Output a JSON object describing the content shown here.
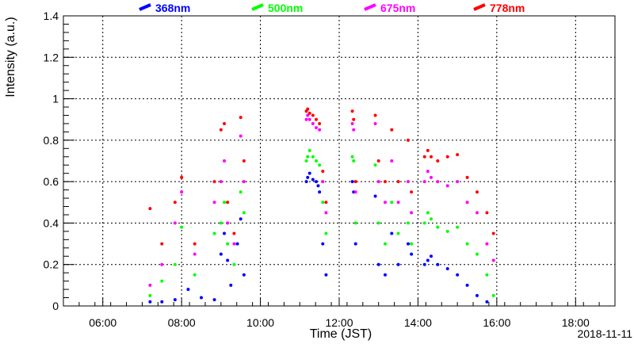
{
  "chart_data": {
    "type": "scatter",
    "xlabel": "Time (JST)",
    "ylabel": "Intensity (a.u.)",
    "date_label": "2018-11-11",
    "xlim": [
      "05:00",
      "19:00"
    ],
    "ylim": [
      0,
      1.4
    ],
    "x_ticks": [
      "06:00",
      "08:00",
      "10:00",
      "12:00",
      "14:00",
      "16:00",
      "18:00"
    ],
    "y_ticks": [
      "0",
      "0.2",
      "0.4",
      "0.6",
      "0.8",
      "1",
      "1.2",
      "1.4"
    ],
    "grid": true,
    "legend_position": "top",
    "series": [
      {
        "name": "368nm",
        "color": "#0000ff",
        "points": [
          [
            "07:12",
            0.02
          ],
          [
            "07:30",
            0.02
          ],
          [
            "07:50",
            0.03
          ],
          [
            "08:10",
            0.08
          ],
          [
            "08:30",
            0.04
          ],
          [
            "08:50",
            0.03
          ],
          [
            "09:00",
            0.25
          ],
          [
            "09:05",
            0.35
          ],
          [
            "09:10",
            0.22
          ],
          [
            "09:15",
            0.1
          ],
          [
            "09:25",
            0.3
          ],
          [
            "09:30",
            0.42
          ],
          [
            "09:35",
            0.15
          ],
          [
            "11:10",
            0.6
          ],
          [
            "11:12",
            0.62
          ],
          [
            "11:15",
            0.64
          ],
          [
            "11:20",
            0.61
          ],
          [
            "11:25",
            0.6
          ],
          [
            "11:28",
            0.58
          ],
          [
            "11:30",
            0.55
          ],
          [
            "11:35",
            0.3
          ],
          [
            "11:40",
            0.15
          ],
          [
            "12:20",
            0.6
          ],
          [
            "12:22",
            0.55
          ],
          [
            "12:25",
            0.3
          ],
          [
            "12:55",
            0.53
          ],
          [
            "13:00",
            0.2
          ],
          [
            "13:10",
            0.15
          ],
          [
            "13:20",
            0.35
          ],
          [
            "13:30",
            0.2
          ],
          [
            "13:45",
            0.3
          ],
          [
            "13:50",
            0.25
          ],
          [
            "14:10",
            0.2
          ],
          [
            "14:15",
            0.22
          ],
          [
            "14:20",
            0.24
          ],
          [
            "14:30",
            0.2
          ],
          [
            "14:45",
            0.18
          ],
          [
            "15:00",
            0.15
          ],
          [
            "15:15",
            0.1
          ],
          [
            "15:30",
            0.05
          ],
          [
            "15:45",
            0.02
          ]
        ]
      },
      {
        "name": "500nm",
        "color": "#00ff00",
        "points": [
          [
            "07:12",
            0.05
          ],
          [
            "07:30",
            0.12
          ],
          [
            "07:50",
            0.2
          ],
          [
            "08:00",
            0.38
          ],
          [
            "08:20",
            0.15
          ],
          [
            "08:50",
            0.35
          ],
          [
            "09:00",
            0.4
          ],
          [
            "09:05",
            0.5
          ],
          [
            "09:10",
            0.3
          ],
          [
            "09:20",
            0.2
          ],
          [
            "09:30",
            0.55
          ],
          [
            "09:35",
            0.45
          ],
          [
            "11:10",
            0.7
          ],
          [
            "11:12",
            0.72
          ],
          [
            "11:15",
            0.75
          ],
          [
            "11:20",
            0.72
          ],
          [
            "11:25",
            0.7
          ],
          [
            "11:30",
            0.68
          ],
          [
            "11:35",
            0.5
          ],
          [
            "11:40",
            0.35
          ],
          [
            "12:20",
            0.72
          ],
          [
            "12:22",
            0.7
          ],
          [
            "12:25",
            0.4
          ],
          [
            "12:55",
            0.68
          ],
          [
            "13:00",
            0.4
          ],
          [
            "13:10",
            0.3
          ],
          [
            "13:20",
            0.5
          ],
          [
            "13:30",
            0.35
          ],
          [
            "13:45",
            0.4
          ],
          [
            "13:50",
            0.3
          ],
          [
            "14:10",
            0.4
          ],
          [
            "14:15",
            0.45
          ],
          [
            "14:20",
            0.42
          ],
          [
            "14:30",
            0.38
          ],
          [
            "14:45",
            0.36
          ],
          [
            "15:00",
            0.38
          ],
          [
            "15:15",
            0.3
          ],
          [
            "15:30",
            0.25
          ],
          [
            "15:45",
            0.15
          ],
          [
            "15:55",
            0.05
          ]
        ]
      },
      {
        "name": "675nm",
        "color": "#ff00ff",
        "points": [
          [
            "07:12",
            0.1
          ],
          [
            "07:30",
            0.2
          ],
          [
            "07:50",
            0.4
          ],
          [
            "08:00",
            0.55
          ],
          [
            "08:20",
            0.25
          ],
          [
            "08:50",
            0.5
          ],
          [
            "09:00",
            0.6
          ],
          [
            "09:05",
            0.7
          ],
          [
            "09:10",
            0.4
          ],
          [
            "09:20",
            0.3
          ],
          [
            "09:30",
            0.82
          ],
          [
            "09:35",
            0.6
          ],
          [
            "11:10",
            0.9
          ],
          [
            "11:12",
            0.92
          ],
          [
            "11:15",
            0.9
          ],
          [
            "11:20",
            0.88
          ],
          [
            "11:25",
            0.86
          ],
          [
            "11:30",
            0.85
          ],
          [
            "11:35",
            0.6
          ],
          [
            "11:40",
            0.45
          ],
          [
            "12:20",
            0.88
          ],
          [
            "12:22",
            0.85
          ],
          [
            "12:25",
            0.55
          ],
          [
            "12:55",
            0.88
          ],
          [
            "13:00",
            0.6
          ],
          [
            "13:10",
            0.5
          ],
          [
            "13:20",
            0.7
          ],
          [
            "13:30",
            0.5
          ],
          [
            "13:45",
            0.6
          ],
          [
            "13:50",
            0.45
          ],
          [
            "14:10",
            0.6
          ],
          [
            "14:15",
            0.65
          ],
          [
            "14:20",
            0.62
          ],
          [
            "14:30",
            0.6
          ],
          [
            "14:45",
            0.58
          ],
          [
            "15:00",
            0.6
          ],
          [
            "15:15",
            0.5
          ],
          [
            "15:30",
            0.45
          ],
          [
            "15:45",
            0.3
          ],
          [
            "15:55",
            0.22
          ]
        ]
      },
      {
        "name": "778nm",
        "color": "#ff0000",
        "points": [
          [
            "07:12",
            0.47
          ],
          [
            "07:30",
            0.3
          ],
          [
            "07:50",
            0.5
          ],
          [
            "08:00",
            0.62
          ],
          [
            "08:20",
            0.3
          ],
          [
            "08:50",
            0.6
          ],
          [
            "09:00",
            0.85
          ],
          [
            "09:05",
            0.88
          ],
          [
            "09:10",
            0.5
          ],
          [
            "09:20",
            0.35
          ],
          [
            "09:30",
            0.91
          ],
          [
            "09:35",
            0.7
          ],
          [
            "11:10",
            0.94
          ],
          [
            "11:12",
            0.95
          ],
          [
            "11:15",
            0.93
          ],
          [
            "11:20",
            0.92
          ],
          [
            "11:25",
            0.9
          ],
          [
            "11:30",
            0.88
          ],
          [
            "11:35",
            0.65
          ],
          [
            "11:40",
            0.5
          ],
          [
            "12:20",
            0.94
          ],
          [
            "12:22",
            0.9
          ],
          [
            "12:25",
            0.6
          ],
          [
            "12:55",
            0.92
          ],
          [
            "13:00",
            0.7
          ],
          [
            "13:10",
            0.6
          ],
          [
            "13:20",
            0.85
          ],
          [
            "13:30",
            0.6
          ],
          [
            "13:45",
            0.8
          ],
          [
            "13:50",
            0.55
          ],
          [
            "14:10",
            0.72
          ],
          [
            "14:15",
            0.75
          ],
          [
            "14:20",
            0.72
          ],
          [
            "14:30",
            0.7
          ],
          [
            "14:45",
            0.72
          ],
          [
            "15:00",
            0.73
          ],
          [
            "15:15",
            0.62
          ],
          [
            "15:30",
            0.55
          ],
          [
            "15:45",
            0.45
          ],
          [
            "15:55",
            0.35
          ]
        ]
      }
    ]
  }
}
